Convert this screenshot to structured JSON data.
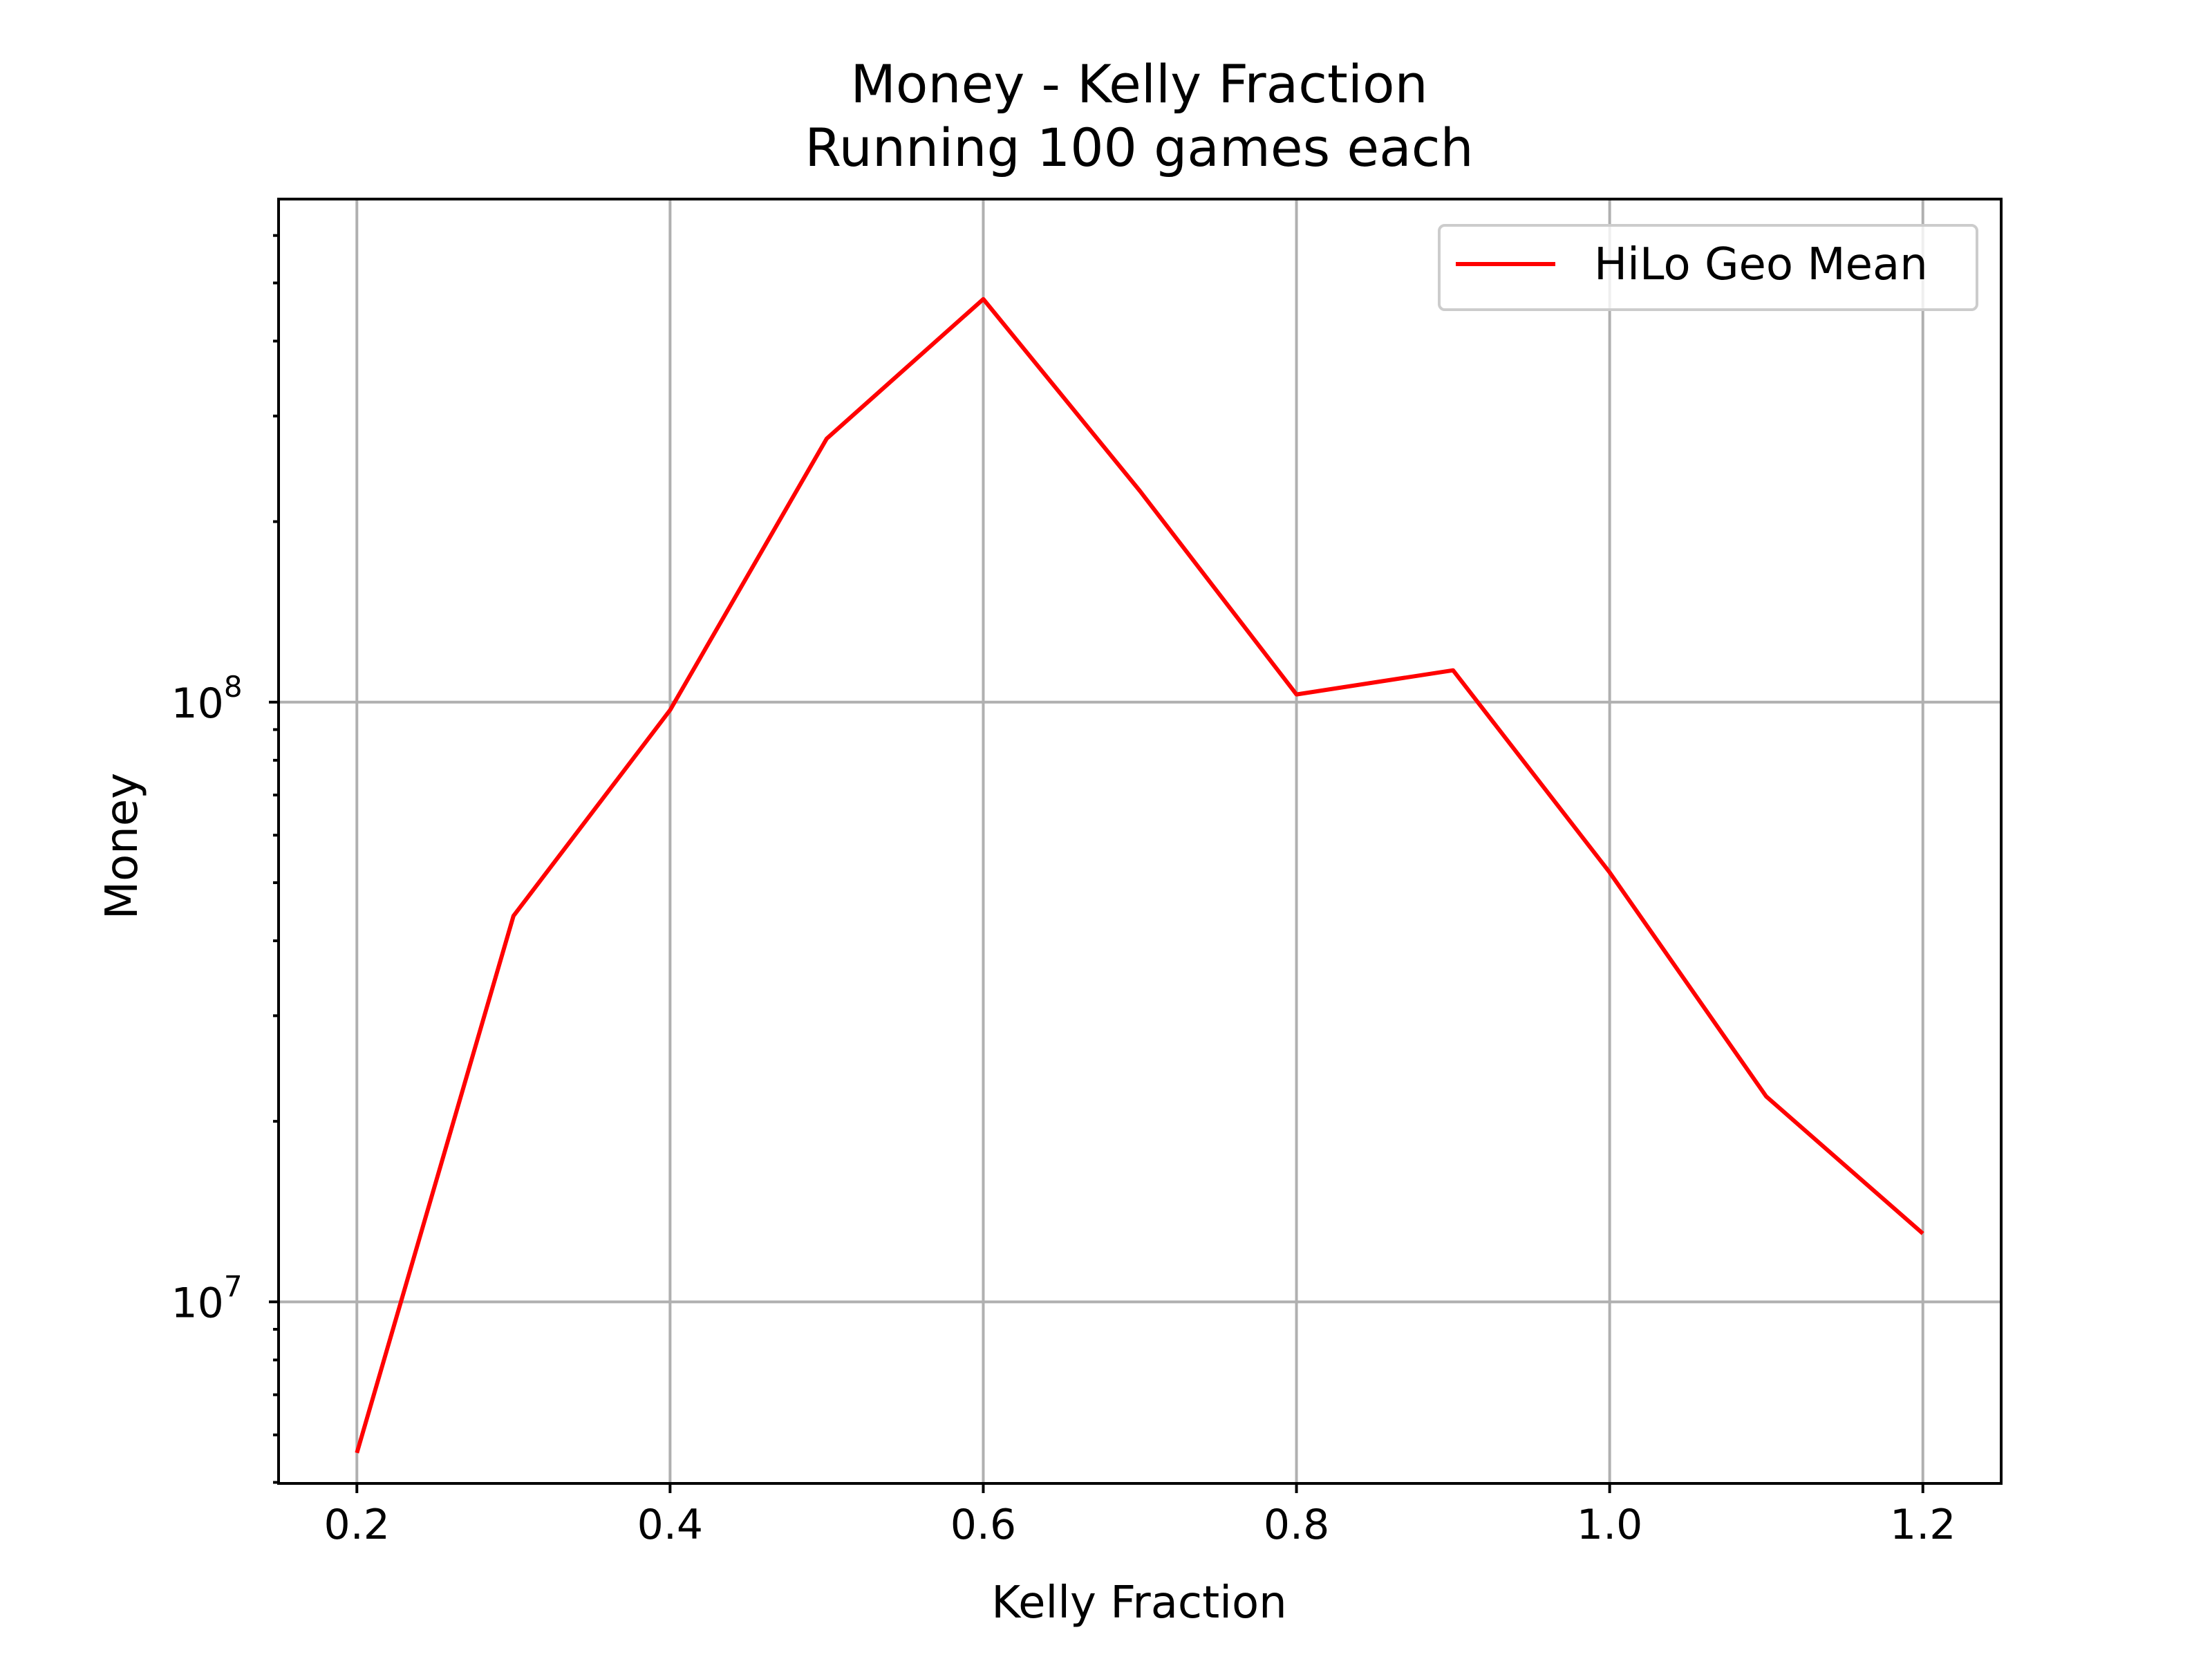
{
  "chart_data": {
    "type": "line",
    "title": "Money - Kelly Fraction",
    "subtitle": "Running 100 games each",
    "xlabel": "Kelly Fraction",
    "ylabel": "Money",
    "yscale": "log",
    "xlim": [
      0.15,
      1.25
    ],
    "ylim": [
      4980000.0,
      690000000.0
    ],
    "grid": true,
    "legend_position": "top-right",
    "x_ticks": [
      0.2,
      0.4,
      0.6,
      0.8,
      1.0,
      1.2
    ],
    "x_tick_labels": [
      "0.2",
      "0.4",
      "0.6",
      "0.8",
      "1.0",
      "1.2"
    ],
    "y_ticks": [
      10000000.0,
      100000000.0
    ],
    "y_tick_labels": [
      {
        "base": "10",
        "exp": "7"
      },
      {
        "base": "10",
        "exp": "8"
      }
    ],
    "series": [
      {
        "name": "HiLo Geo Mean",
        "color": "#ff0000",
        "x": [
          0.2,
          0.3,
          0.4,
          0.5,
          0.6,
          0.7,
          0.8,
          0.9,
          1.0,
          1.1,
          1.2
        ],
        "y": [
          5600000.0,
          44000000.0,
          97000000.0,
          275000000.0,
          470000000.0,
          225000000.0,
          103000000.0,
          113000000.0,
          52000000.0,
          22000000.0,
          13000000.0
        ]
      }
    ]
  }
}
